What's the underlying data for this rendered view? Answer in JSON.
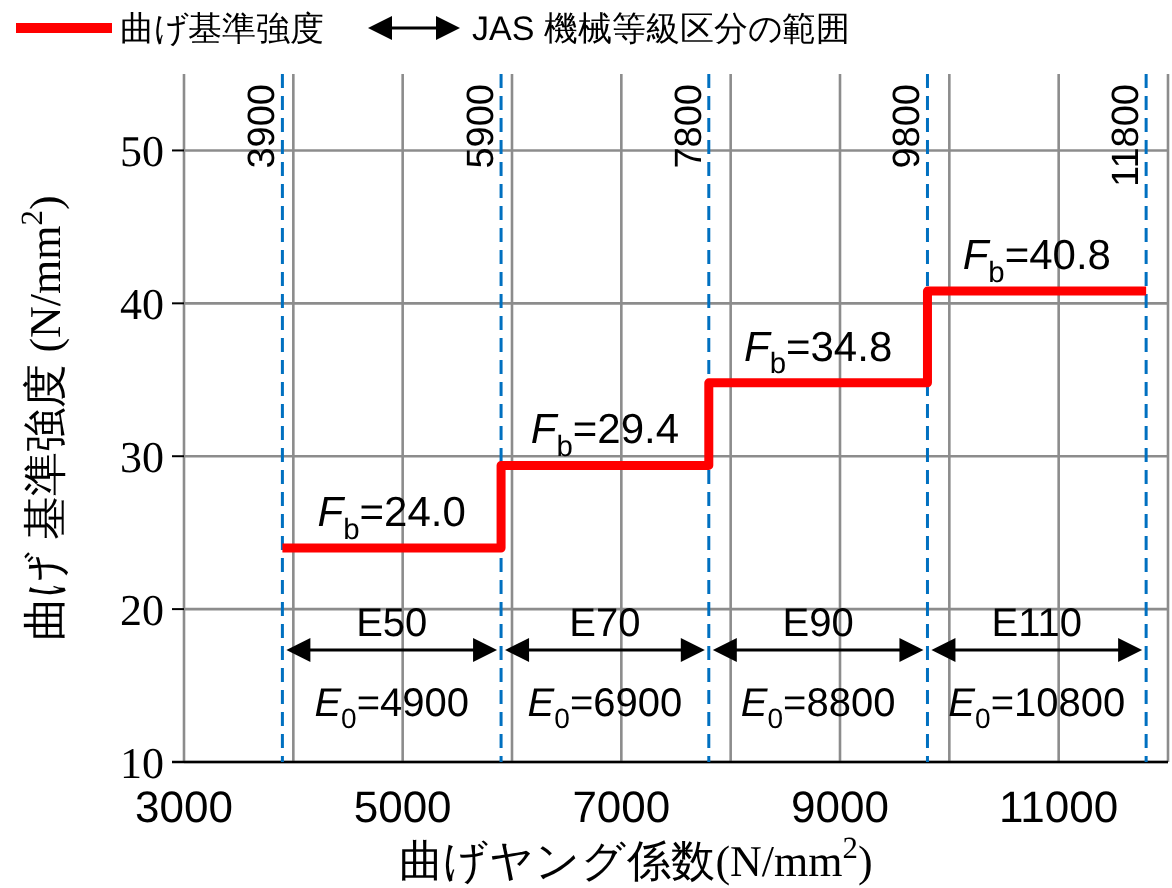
{
  "chart_data": {
    "type": "step",
    "legend": "top",
    "grid": true,
    "xlabel": "曲げヤング係数(N/mm$^{2}$)",
    "ylabel": "曲げ 基準強度 (N/mm$^{2}$)",
    "xlim": [
      3000,
      12000
    ],
    "xticks": [
      3000,
      {
        "value": 4000,
        "label": null
      },
      5000,
      {
        "value": 6000,
        "label": null
      },
      7000,
      {
        "value": 8000,
        "label": null
      },
      9000,
      {
        "value": 10000,
        "label": null
      },
      11000,
      {
        "value": 12000,
        "label": null
      }
    ],
    "ylim": [
      10,
      55
    ],
    "yticks": [
      10,
      20,
      30,
      40,
      50
    ],
    "x": [
      3900,
      5900,
      7800,
      9800,
      11800
    ],
    "series": [
      {
        "name": "曲げ基準強度",
        "color": "#ff0000",
        "values": [
          24.0,
          29.4,
          34.8,
          40.8,
          40.8
        ]
      }
    ],
    "ref_lines": [
      {
        "axis": "x",
        "value": 3900,
        "label": "3900",
        "color": "#0070c0",
        "line_style": "dashed"
      },
      {
        "axis": "x",
        "value": 5900,
        "label": "5900",
        "color": "#0070c0",
        "line_style": "dashed"
      },
      {
        "axis": "x",
        "value": 7800,
        "label": "7800",
        "color": "#0070c0",
        "line_style": "dashed"
      },
      {
        "axis": "x",
        "value": 9800,
        "label": "9800",
        "color": "#0070c0",
        "line_style": "dashed"
      },
      {
        "axis": "x",
        "value": 11800,
        "label": "11800",
        "color": "#0070c0",
        "line_style": "dashed"
      }
    ],
    "annotations": [
      "JAS 機械等級区分の範囲",
      {
        "text": "*F*$_{b}$=24.0",
        "x": 4900,
        "y": 24.0
      },
      {
        "text": "*F*$_{b}$=29.4",
        "x": 6850,
        "y": 29.4
      },
      {
        "text": "*F*$_{b}$=34.8",
        "x": 8800,
        "y": 34.8
      },
      {
        "text": "*F*$_{b}$=40.8",
        "x": 10800,
        "y": 40.8
      },
      "E50",
      "E70",
      "E90",
      "E110",
      "*E*$_{0}$=4900",
      "*E*$_{0}$=6900",
      "*E*$_{0}$=8800",
      "*E*$_{0}$=10800"
    ]
  }
}
